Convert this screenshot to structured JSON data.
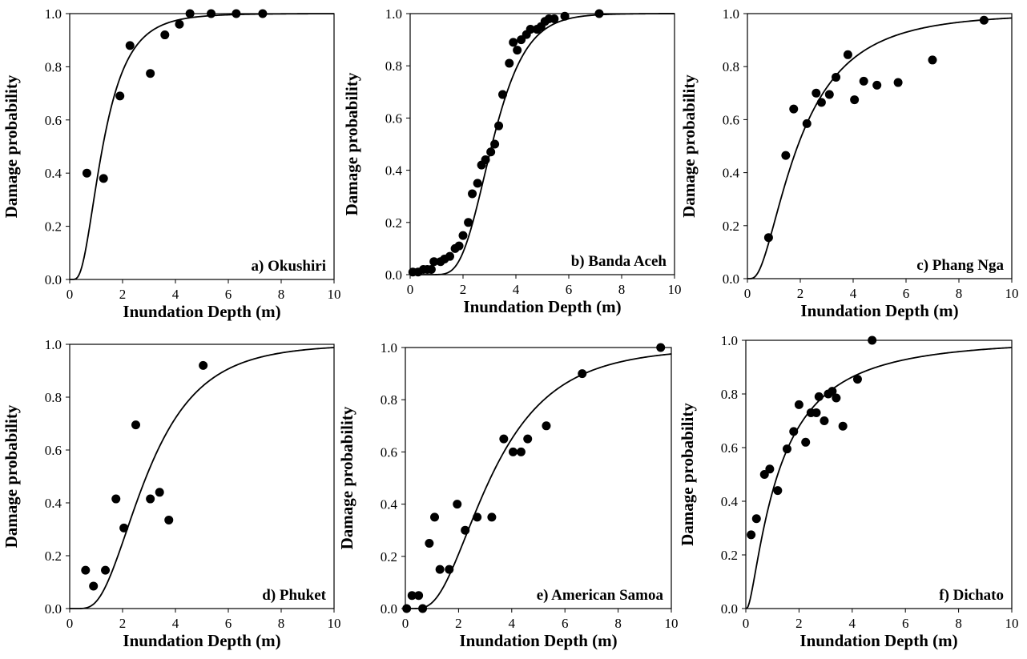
{
  "chart_data": [
    {
      "type": "scatter",
      "panel_label": "a) Okushiri",
      "xlabel": "Inundation Depth (m)",
      "ylabel": "Damage probability",
      "xlim": [
        0,
        10
      ],
      "ylim": [
        0,
        1
      ],
      "xticks": [
        "0",
        "2",
        "4",
        "6",
        "8",
        "10"
      ],
      "yticks": [
        "0.0",
        "0.2",
        "0.4",
        "0.6",
        "0.8",
        "1.0"
      ],
      "points": [
        [
          0.65,
          0.4
        ],
        [
          1.28,
          0.38
        ],
        [
          1.9,
          0.69
        ],
        [
          2.28,
          0.88
        ],
        [
          3.05,
          0.775
        ],
        [
          3.6,
          0.92
        ],
        [
          4.15,
          0.96
        ],
        [
          4.55,
          1.0
        ],
        [
          5.35,
          1.0
        ],
        [
          6.3,
          1.0
        ],
        [
          7.3,
          1.0
        ]
      ],
      "curve": {
        "kind": "lognormal",
        "median": 1.25,
        "sigma": 0.6
      },
      "legend": "none",
      "grid": false
    },
    {
      "type": "scatter",
      "panel_label": "b) Banda Aceh",
      "xlabel": "Inundation Depth (m)",
      "ylabel": "Damage probability",
      "xlim": [
        0,
        10
      ],
      "ylim": [
        0,
        1
      ],
      "xticks": [
        "0",
        "2",
        "4",
        "6",
        "8",
        "10"
      ],
      "yticks": [
        "0.0",
        "0.2",
        "0.4",
        "0.6",
        "0.8",
        "1.0"
      ],
      "points": [
        [
          0.1,
          0.01
        ],
        [
          0.3,
          0.01
        ],
        [
          0.5,
          0.02
        ],
        [
          0.65,
          0.02
        ],
        [
          0.8,
          0.02
        ],
        [
          0.9,
          0.05
        ],
        [
          1.15,
          0.05
        ],
        [
          1.3,
          0.06
        ],
        [
          1.5,
          0.07
        ],
        [
          1.7,
          0.1
        ],
        [
          1.85,
          0.11
        ],
        [
          2.0,
          0.15
        ],
        [
          2.2,
          0.2
        ],
        [
          2.35,
          0.31
        ],
        [
          2.55,
          0.35
        ],
        [
          2.7,
          0.42
        ],
        [
          2.85,
          0.44
        ],
        [
          3.05,
          0.47
        ],
        [
          3.2,
          0.5
        ],
        [
          3.35,
          0.57
        ],
        [
          3.5,
          0.69
        ],
        [
          3.75,
          0.81
        ],
        [
          3.9,
          0.89
        ],
        [
          4.05,
          0.86
        ],
        [
          4.2,
          0.9
        ],
        [
          4.4,
          0.92
        ],
        [
          4.55,
          0.94
        ],
        [
          4.8,
          0.94
        ],
        [
          4.95,
          0.95
        ],
        [
          5.1,
          0.97
        ],
        [
          5.25,
          0.98
        ],
        [
          5.45,
          0.98
        ],
        [
          5.85,
          0.99
        ],
        [
          7.15,
          1.0
        ]
      ],
      "curve": {
        "kind": "lognormal",
        "median": 3.1,
        "sigma": 0.32
      },
      "legend": "none",
      "grid": false
    },
    {
      "type": "scatter",
      "panel_label": "c) Phang Nga",
      "xlabel": "Inundation Depth (m)",
      "ylabel": "Damage probability",
      "xlim": [
        0,
        10
      ],
      "ylim": [
        0,
        1
      ],
      "xticks": [
        "0",
        "2",
        "4",
        "6",
        "8",
        "10"
      ],
      "yticks": [
        "0.0",
        "0.2",
        "0.4",
        "0.6",
        "0.8",
        "1.0"
      ],
      "points": [
        [
          0.8,
          0.155
        ],
        [
          1.45,
          0.465
        ],
        [
          1.75,
          0.64
        ],
        [
          2.25,
          0.585
        ],
        [
          2.6,
          0.7
        ],
        [
          2.8,
          0.665
        ],
        [
          3.1,
          0.695
        ],
        [
          3.35,
          0.76
        ],
        [
          3.8,
          0.845
        ],
        [
          4.05,
          0.675
        ],
        [
          4.4,
          0.745
        ],
        [
          4.9,
          0.73
        ],
        [
          5.7,
          0.74
        ],
        [
          7.0,
          0.825
        ],
        [
          8.95,
          0.975
        ]
      ],
      "curve": {
        "kind": "lognormal",
        "median": 1.9,
        "sigma": 0.78
      },
      "legend": "none",
      "grid": false
    },
    {
      "type": "scatter",
      "panel_label": "d) Phuket",
      "xlabel": "Inundation Depth (m)",
      "ylabel": "Damage probability",
      "xlim": [
        0,
        10
      ],
      "ylim": [
        0,
        1
      ],
      "xticks": [
        "0",
        "2",
        "4",
        "6",
        "8",
        "10"
      ],
      "yticks": [
        "0.0",
        "0.2",
        "0.4",
        "0.6",
        "0.8",
        "1.0"
      ],
      "points": [
        [
          0.6,
          0.145
        ],
        [
          0.9,
          0.085
        ],
        [
          1.35,
          0.145
        ],
        [
          1.75,
          0.415
        ],
        [
          2.05,
          0.305
        ],
        [
          2.5,
          0.695
        ],
        [
          3.05,
          0.415
        ],
        [
          3.4,
          0.44
        ],
        [
          3.75,
          0.335
        ],
        [
          5.05,
          0.92
        ]
      ],
      "curve": {
        "kind": "lognormal",
        "median": 2.9,
        "sigma": 0.55
      },
      "legend": "none",
      "grid": false
    },
    {
      "type": "scatter",
      "panel_label": "e) American Samoa",
      "xlabel": "Inundation Depth (m)",
      "ylabel": "Damage probability",
      "xlim": [
        0,
        10
      ],
      "ylim": [
        0,
        1
      ],
      "xticks": [
        "0",
        "2",
        "4",
        "6",
        "8",
        "10"
      ],
      "yticks": [
        "0.0",
        "0.2",
        "0.4",
        "0.6",
        "0.8",
        "1.0"
      ],
      "points": [
        [
          0.05,
          0.0
        ],
        [
          0.25,
          0.05
        ],
        [
          0.5,
          0.05
        ],
        [
          0.65,
          0.0
        ],
        [
          0.9,
          0.25
        ],
        [
          1.1,
          0.35
        ],
        [
          1.3,
          0.15
        ],
        [
          1.65,
          0.15
        ],
        [
          1.95,
          0.4
        ],
        [
          2.25,
          0.3
        ],
        [
          2.7,
          0.35
        ],
        [
          3.25,
          0.35
        ],
        [
          3.7,
          0.65
        ],
        [
          4.05,
          0.6
        ],
        [
          4.35,
          0.6
        ],
        [
          4.6,
          0.65
        ],
        [
          5.3,
          0.7
        ],
        [
          6.65,
          0.9
        ],
        [
          9.6,
          1.0
        ]
      ],
      "curve": {
        "kind": "lognormal",
        "median": 3.2,
        "sigma": 0.58
      },
      "legend": "none",
      "grid": false
    },
    {
      "type": "scatter",
      "panel_label": "f) Dichato",
      "xlabel": "Inundation Depth (m)",
      "ylabel": "Damage probability",
      "xlim": [
        0,
        10
      ],
      "ylim": [
        0,
        1
      ],
      "xticks": [
        "0",
        "2",
        "4",
        "6",
        "8",
        "10"
      ],
      "yticks": [
        "0.0",
        "0.2",
        "0.4",
        "0.6",
        "0.8",
        "1.0"
      ],
      "points": [
        [
          0.2,
          0.275
        ],
        [
          0.4,
          0.335
        ],
        [
          0.7,
          0.5
        ],
        [
          0.9,
          0.52
        ],
        [
          1.2,
          0.44
        ],
        [
          1.55,
          0.595
        ],
        [
          1.8,
          0.66
        ],
        [
          2.0,
          0.76
        ],
        [
          2.25,
          0.62
        ],
        [
          2.45,
          0.73
        ],
        [
          2.65,
          0.73
        ],
        [
          2.75,
          0.79
        ],
        [
          2.95,
          0.7
        ],
        [
          3.1,
          0.8
        ],
        [
          3.25,
          0.81
        ],
        [
          3.4,
          0.785
        ],
        [
          3.65,
          0.68
        ],
        [
          4.2,
          0.855
        ],
        [
          4.75,
          1.0
        ]
      ],
      "curve": {
        "kind": "lognormal",
        "median": 1.2,
        "sigma": 1.1
      },
      "legend": "none",
      "grid": false
    }
  ]
}
